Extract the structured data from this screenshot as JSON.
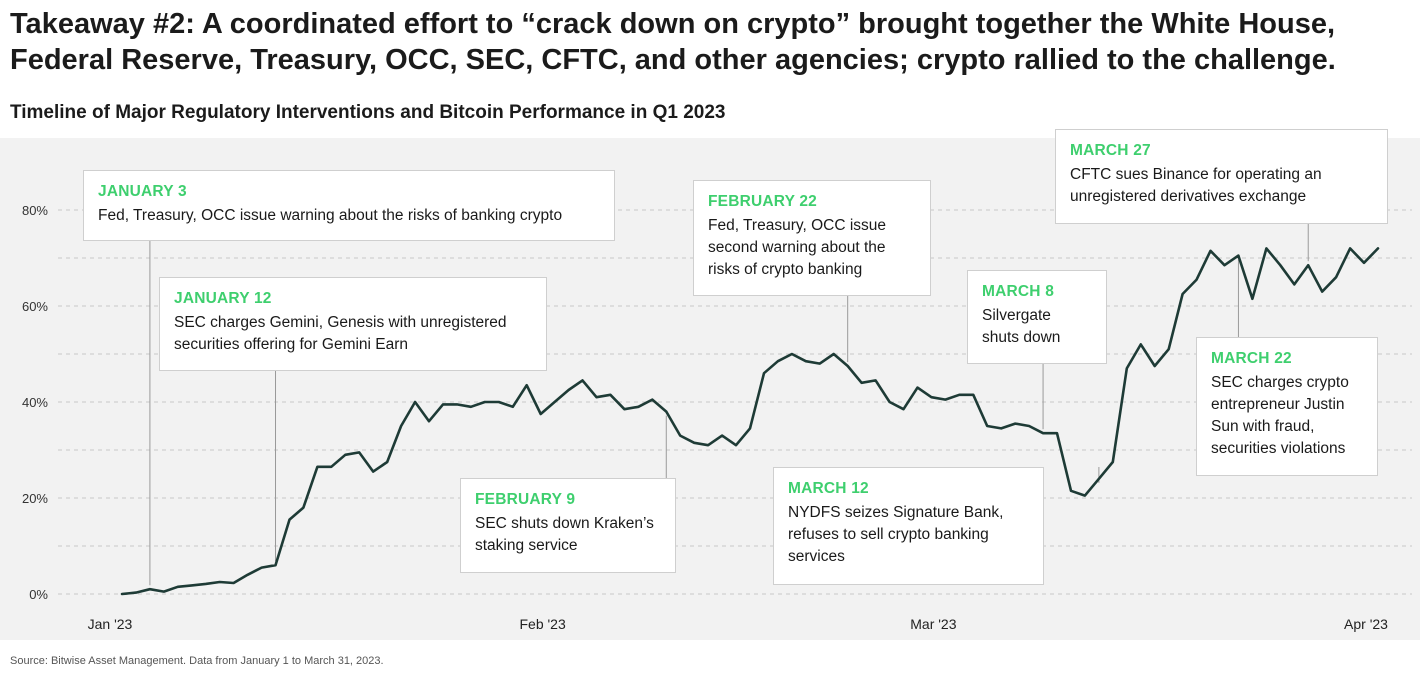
{
  "headline": "Takeaway #2: A coordinated effort to “crack down on crypto” brought together the White House, Federal Reserve, Treasury, OCC, SEC, CFTC, and other agencies; crypto rallied to the challenge.",
  "source": "Source: Bitwise Asset Management. Data from January 1 to March 31, 2023.",
  "colors": {
    "line": "#1e3b36",
    "accent_green": "#3ecf6e",
    "panel_bg": "#f2f2f2",
    "grid": "#c8c8c8"
  },
  "callouts": [
    {
      "id": "jan3",
      "date": "JANUARY 3",
      "text": "Fed, Treasury, OCC issue warning about the risks of banking crypto",
      "event_date": "2023-01-03"
    },
    {
      "id": "jan12",
      "date": "JANUARY 12",
      "text": "SEC charges Gemini, Genesis with unregistered securities offering for Gemini Earn",
      "event_date": "2023-01-12"
    },
    {
      "id": "feb9",
      "date": "FEBRUARY 9",
      "text": "SEC shuts down Kraken’s staking service",
      "event_date": "2023-02-09"
    },
    {
      "id": "feb22",
      "date": "FEBRUARY 22",
      "text": "Fed, Treasury, OCC issue second warning about the risks of crypto banking",
      "event_date": "2023-02-22"
    },
    {
      "id": "mar8",
      "date": "MARCH 8",
      "text": "Silvergate shuts down",
      "event_date": "2023-03-08"
    },
    {
      "id": "mar12",
      "date": "MARCH 12",
      "text": "NYDFS seizes Signature Bank, refuses to sell crypto banking services",
      "event_date": "2023-03-12"
    },
    {
      "id": "mar22",
      "date": "MARCH 22",
      "text": "SEC charges crypto entrepreneur Justin Sun with fraud, securities violations",
      "event_date": "2023-03-22"
    },
    {
      "id": "mar27",
      "date": "MARCH 27",
      "text": "CFTC sues Binance for operating an unregistered derivatives exchange",
      "event_date": "2023-03-27"
    }
  ],
  "chart_data": {
    "type": "line",
    "title": "Timeline of Major Regulatory Interventions and Bitcoin Performance in Q1 2023",
    "xlabel": "",
    "ylabel": "",
    "x_ticks": [
      {
        "label": "Jan '23",
        "date": "2023-01-01"
      },
      {
        "label": "Feb '23",
        "date": "2023-02-01"
      },
      {
        "label": "Mar '23",
        "date": "2023-03-01"
      },
      {
        "label": "Apr '23",
        "date": "2023-04-01"
      }
    ],
    "y_ticks": [
      {
        "label": "0%",
        "value": 0
      },
      {
        "label": "20%",
        "value": 20
      },
      {
        "label": "40%",
        "value": 40
      },
      {
        "label": "60%",
        "value": 60
      },
      {
        "label": "80%",
        "value": 80
      }
    ],
    "ylim": [
      -2,
      82
    ],
    "gridlines_at": [
      0,
      10,
      20,
      30,
      40,
      50,
      60,
      70,
      80
    ],
    "grid": true,
    "y_unit": "%",
    "series": [
      {
        "points": [
          [
            "2023-01-01",
            0
          ],
          [
            "2023-01-02",
            0.3
          ],
          [
            "2023-01-03",
            1.0
          ],
          [
            "2023-01-04",
            0.5
          ],
          [
            "2023-01-05",
            1.5
          ],
          [
            "2023-01-06",
            1.8
          ],
          [
            "2023-01-07",
            2.1
          ],
          [
            "2023-01-08",
            2.5
          ],
          [
            "2023-01-09",
            2.3
          ],
          [
            "2023-01-10",
            4.0
          ],
          [
            "2023-01-11",
            5.5
          ],
          [
            "2023-01-12",
            6.0
          ],
          [
            "2023-01-13",
            15.5
          ],
          [
            "2023-01-14",
            18.0
          ],
          [
            "2023-01-15",
            26.5
          ],
          [
            "2023-01-16",
            26.5
          ],
          [
            "2023-01-17",
            29.0
          ],
          [
            "2023-01-18",
            29.5
          ],
          [
            "2023-01-19",
            25.5
          ],
          [
            "2023-01-20",
            27.5
          ],
          [
            "2023-01-21",
            35.0
          ],
          [
            "2023-01-22",
            40.0
          ],
          [
            "2023-01-23",
            36.0
          ],
          [
            "2023-01-24",
            39.5
          ],
          [
            "2023-01-25",
            39.5
          ],
          [
            "2023-01-26",
            39.0
          ],
          [
            "2023-01-27",
            40.0
          ],
          [
            "2023-01-28",
            40.0
          ],
          [
            "2023-01-29",
            39.0
          ],
          [
            "2023-01-30",
            43.5
          ],
          [
            "2023-01-31",
            37.5
          ],
          [
            "2023-02-01",
            40.0
          ],
          [
            "2023-02-02",
            42.5
          ],
          [
            "2023-02-03",
            44.5
          ],
          [
            "2023-02-04",
            41.0
          ],
          [
            "2023-02-05",
            41.5
          ],
          [
            "2023-02-06",
            38.5
          ],
          [
            "2023-02-07",
            39.0
          ],
          [
            "2023-02-08",
            40.5
          ],
          [
            "2023-02-09",
            38.0
          ],
          [
            "2023-02-10",
            33.0
          ],
          [
            "2023-02-11",
            31.5
          ],
          [
            "2023-02-12",
            31.0
          ],
          [
            "2023-02-13",
            33.0
          ],
          [
            "2023-02-14",
            31.0
          ],
          [
            "2023-02-15",
            34.5
          ],
          [
            "2023-02-16",
            46.0
          ],
          [
            "2023-02-17",
            48.5
          ],
          [
            "2023-02-18",
            50.0
          ],
          [
            "2023-02-19",
            48.5
          ],
          [
            "2023-02-20",
            48.0
          ],
          [
            "2023-02-21",
            50.0
          ],
          [
            "2023-02-22",
            47.5
          ],
          [
            "2023-02-23",
            44.0
          ],
          [
            "2023-02-24",
            44.5
          ],
          [
            "2023-02-25",
            40.0
          ],
          [
            "2023-02-26",
            38.5
          ],
          [
            "2023-02-27",
            43.0
          ],
          [
            "2023-02-28",
            41.0
          ],
          [
            "2023-03-01",
            40.5
          ],
          [
            "2023-03-02",
            41.5
          ],
          [
            "2023-03-03",
            41.5
          ],
          [
            "2023-03-04",
            35.0
          ],
          [
            "2023-03-05",
            34.5
          ],
          [
            "2023-03-06",
            35.5
          ],
          [
            "2023-03-07",
            35.0
          ],
          [
            "2023-03-08",
            33.5
          ],
          [
            "2023-03-09",
            33.5
          ],
          [
            "2023-03-10",
            21.5
          ],
          [
            "2023-03-11",
            20.5
          ],
          [
            "2023-03-12",
            24.0
          ],
          [
            "2023-03-13",
            27.5
          ],
          [
            "2023-03-14",
            47.0
          ],
          [
            "2023-03-15",
            52.0
          ],
          [
            "2023-03-16",
            47.5
          ],
          [
            "2023-03-17",
            51.0
          ],
          [
            "2023-03-18",
            62.5
          ],
          [
            "2023-03-19",
            65.5
          ],
          [
            "2023-03-20",
            71.5
          ],
          [
            "2023-03-21",
            68.5
          ],
          [
            "2023-03-22",
            70.5
          ],
          [
            "2023-03-23",
            61.5
          ],
          [
            "2023-03-24",
            72.0
          ],
          [
            "2023-03-25",
            68.5
          ],
          [
            "2023-03-26",
            64.5
          ],
          [
            "2023-03-27",
            68.5
          ],
          [
            "2023-03-28",
            63.0
          ],
          [
            "2023-03-29",
            66.0
          ],
          [
            "2023-03-30",
            72.0
          ],
          [
            "2023-03-31",
            69.0
          ],
          [
            "2023-04-01",
            72.0
          ]
        ]
      }
    ]
  }
}
